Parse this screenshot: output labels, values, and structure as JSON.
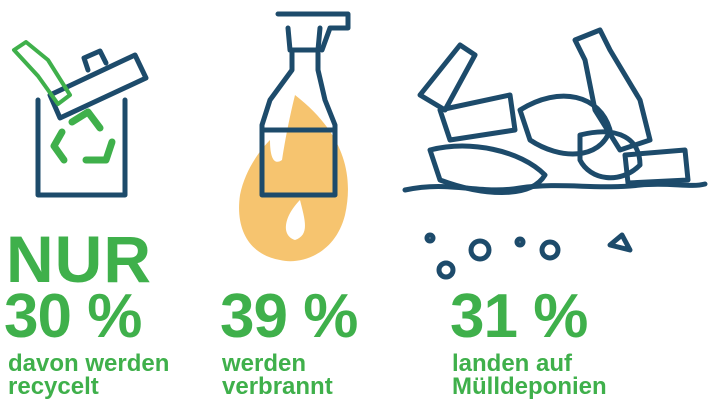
{
  "items": [
    {
      "prefix": "NUR",
      "value": "30 %",
      "lines": [
        "davon werden",
        "recycelt"
      ]
    },
    {
      "value": "39 %",
      "lines": [
        "werden",
        "verbrannt"
      ]
    },
    {
      "value": "31 %",
      "lines": [
        "landen auf",
        "Mülldeponien"
      ]
    }
  ]
}
